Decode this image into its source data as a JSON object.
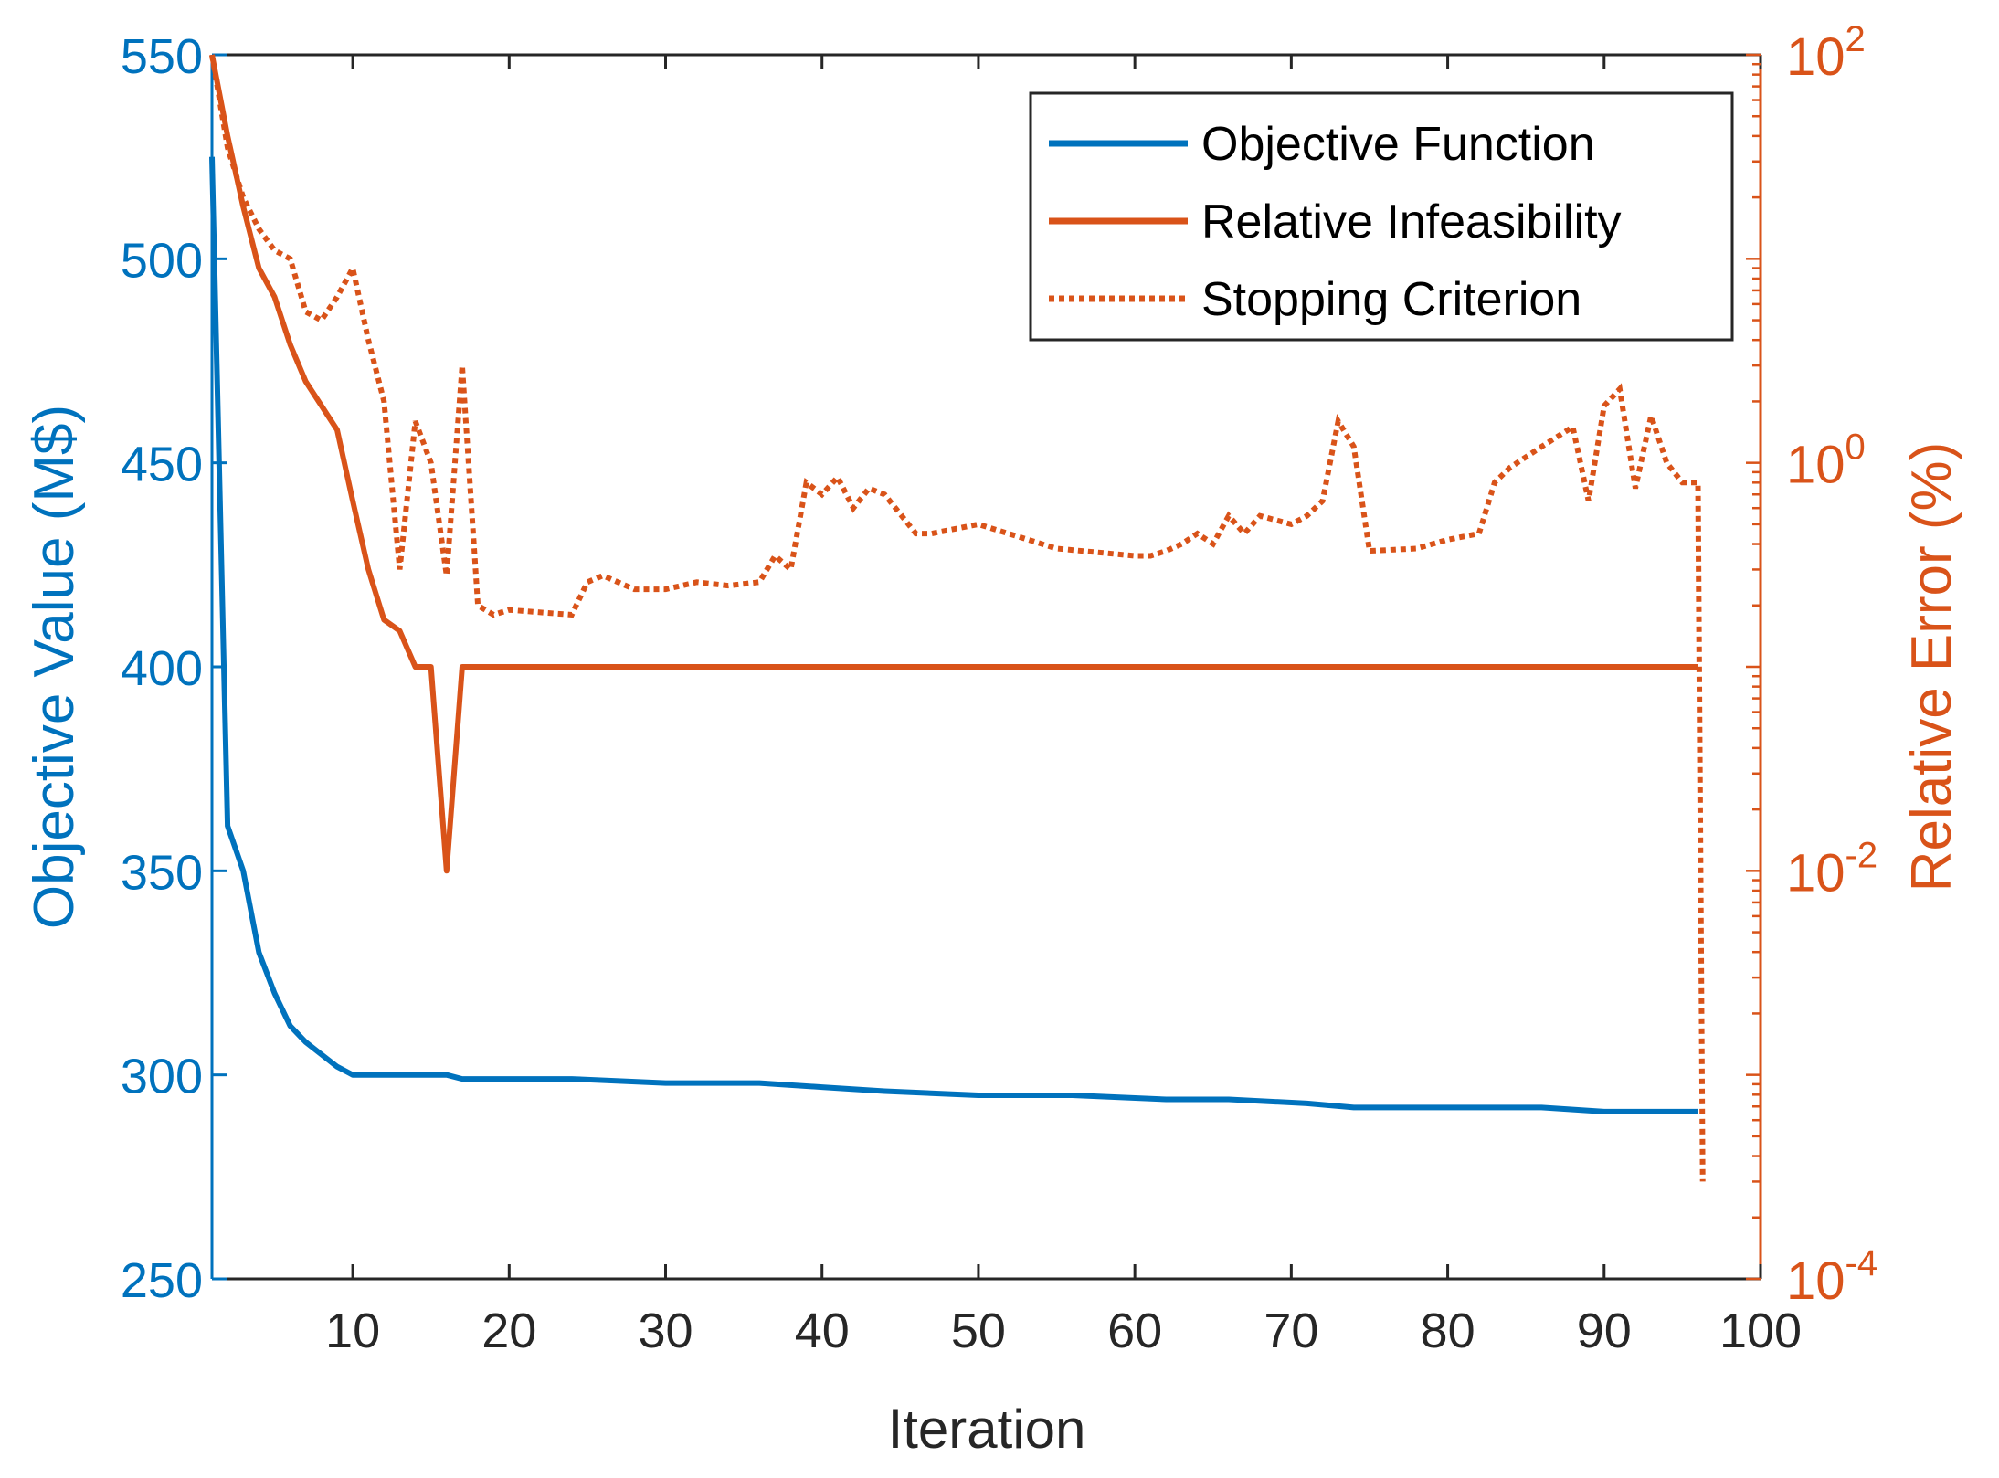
{
  "chart_data": {
    "type": "line",
    "xlabel": "Iteration",
    "ylabel_left": "Objective Value (M$)",
    "ylabel_right": "Relative Error (%)",
    "xlim": [
      1,
      100
    ],
    "ylim_left": [
      250,
      550
    ],
    "ylim_right": [
      0.0001,
      100
    ],
    "yscale_right": "log",
    "x_ticks": [
      10,
      20,
      30,
      40,
      50,
      60,
      70,
      80,
      90,
      100
    ],
    "y_ticks_left": [
      250,
      300,
      350,
      400,
      450,
      500,
      550
    ],
    "y_ticks_right": [
      {
        "value": 0.0001,
        "base": "10",
        "exp": "-4"
      },
      {
        "value": 0.01,
        "base": "10",
        "exp": "-2"
      },
      {
        "value": 1,
        "base": "10",
        "exp": "0"
      },
      {
        "value": 100,
        "base": "10",
        "exp": "2"
      }
    ],
    "legend_position": "top-right",
    "colors": {
      "left_axis": "#0072bd",
      "right_axis": "#d95319",
      "x_axis": "#262626"
    },
    "series": [
      {
        "name": "Objective Function",
        "axis": "left",
        "style": "solid",
        "color": "#0072bd",
        "x": [
          1,
          2,
          3,
          4,
          5,
          6,
          7,
          8,
          9,
          10,
          12,
          14,
          16,
          17,
          20,
          24,
          30,
          36,
          40,
          44,
          50,
          56,
          62,
          66,
          71,
          74,
          78,
          82,
          86,
          90,
          94,
          96
        ],
        "y": [
          525,
          361,
          350,
          330,
          320,
          312,
          308,
          305,
          302,
          300,
          300,
          300,
          300,
          299,
          299,
          299,
          298,
          298,
          297,
          296,
          295,
          295,
          294,
          294,
          293,
          292,
          292,
          292,
          292,
          291,
          291,
          291
        ]
      },
      {
        "name": "Relative Infeasibility",
        "axis": "right",
        "style": "solid",
        "color": "#d95319",
        "x": [
          1,
          2,
          3,
          4,
          5,
          6,
          7,
          9,
          10,
          11,
          12,
          13,
          14,
          15,
          16,
          17,
          20,
          30,
          40,
          50,
          60,
          70,
          80,
          90,
          96
        ],
        "y": [
          100,
          40,
          18,
          9,
          6.5,
          3.8,
          2.5,
          1.45,
          0.65,
          0.3,
          0.17,
          0.15,
          0.1,
          0.1,
          0.01,
          0.1,
          0.1,
          0.1,
          0.1,
          0.1,
          0.1,
          0.1,
          0.1,
          0.1,
          0.1
        ]
      },
      {
        "name": "Stopping Criterion",
        "axis": "right",
        "style": "dotted",
        "color": "#d95319",
        "x": [
          1,
          2,
          3,
          4,
          5,
          6,
          7,
          8,
          9,
          10,
          11,
          12,
          13,
          14,
          15,
          16,
          17,
          18,
          19,
          20,
          24,
          25,
          26,
          28,
          30,
          32,
          34,
          36,
          37,
          38,
          39,
          40,
          41,
          42,
          43,
          44,
          46,
          47,
          50,
          55,
          60,
          61,
          62,
          63,
          64,
          65,
          66,
          67,
          68,
          70,
          71,
          72,
          73,
          74,
          75,
          78,
          80,
          82,
          83,
          84,
          86,
          88,
          89,
          90,
          91,
          92,
          93,
          94,
          95,
          96,
          96.3
        ],
        "y": [
          100,
          35,
          20,
          14,
          11,
          10,
          5.5,
          5,
          6.5,
          9,
          4,
          2,
          0.3,
          1.6,
          1,
          0.28,
          3,
          0.2,
          0.18,
          0.19,
          0.18,
          0.26,
          0.28,
          0.24,
          0.24,
          0.26,
          0.25,
          0.26,
          0.35,
          0.3,
          0.8,
          0.7,
          0.85,
          0.6,
          0.75,
          0.7,
          0.45,
          0.45,
          0.5,
          0.38,
          0.35,
          0.35,
          0.37,
          0.4,
          0.45,
          0.4,
          0.55,
          0.45,
          0.55,
          0.5,
          0.55,
          0.65,
          1.6,
          1.2,
          0.37,
          0.38,
          0.42,
          0.45,
          0.8,
          0.95,
          1.2,
          1.5,
          0.65,
          1.9,
          2.3,
          0.75,
          1.7,
          1.0,
          0.8,
          0.8,
          0.0003
        ]
      }
    ]
  }
}
